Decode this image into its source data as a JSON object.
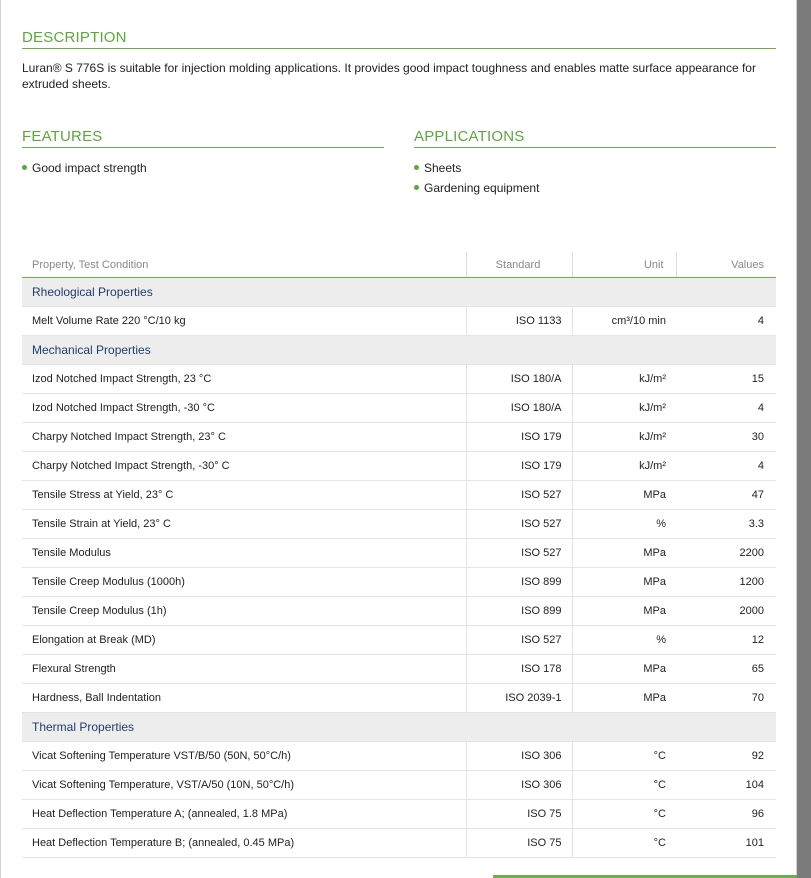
{
  "description": {
    "title": "DESCRIPTION",
    "text": "Luran® S 776S is suitable for injection molding applications. It provides good impact toughness and enables matte surface appearance for extruded sheets."
  },
  "features": {
    "title": "FEATURES",
    "items": [
      "Good impact strength"
    ]
  },
  "applications": {
    "title": "APPLICATIONS",
    "items": [
      "Sheets",
      "Gardening equipment"
    ]
  },
  "table": {
    "headers": [
      "Property, Test Condition",
      "Standard",
      "Unit",
      "Values"
    ],
    "groups": [
      {
        "name": "Rheological Properties",
        "rows": [
          [
            "Melt Volume Rate 220 °C/10 kg",
            "ISO 1133",
            "cm³/10 min",
            "4"
          ]
        ]
      },
      {
        "name": "Mechanical Properties",
        "rows": [
          [
            "Izod Notched Impact Strength, 23 °C",
            "ISO 180/A",
            "kJ/m²",
            "15"
          ],
          [
            "Izod Notched Impact Strength, -30 °C",
            "ISO 180/A",
            "kJ/m²",
            "4"
          ],
          [
            "Charpy Notched Impact Strength, 23° C",
            "ISO 179",
            "kJ/m²",
            "30"
          ],
          [
            "Charpy Notched Impact Strength, -30° C",
            "ISO 179",
            "kJ/m²",
            "4"
          ],
          [
            "Tensile Stress at Yield, 23° C",
            "ISO 527",
            "MPa",
            "47"
          ],
          [
            "Tensile Strain at Yield, 23° C",
            "ISO 527",
            "%",
            "3.3"
          ],
          [
            "Tensile Modulus",
            "ISO 527",
            "MPa",
            "2200"
          ],
          [
            "Tensile Creep Modulus (1000h)",
            "ISO 899",
            "MPa",
            "1200"
          ],
          [
            "Tensile Creep Modulus (1h)",
            "ISO 899",
            "MPa",
            "2000"
          ],
          [
            "Elongation at Break (MD)",
            "ISO 527",
            "%",
            "12"
          ],
          [
            "Flexural Strength",
            "ISO 178",
            "MPa",
            "65"
          ],
          [
            "Hardness, Ball Indentation",
            "ISO 2039-1",
            "MPa",
            "70"
          ]
        ]
      },
      {
        "name": "Thermal Properties",
        "rows": [
          [
            "Vicat Softening Temperature VST/B/50 (50N, 50°C/h)",
            "ISO 306",
            "°C",
            "92"
          ],
          [
            "Vicat Softening Temperature, VST/A/50 (10N, 50°C/h)",
            "ISO 306",
            "°C",
            "104"
          ],
          [
            "Heat Deflection Temperature A; (annealed, 1.8 MPa)",
            "ISO 75",
            "°C",
            "96"
          ],
          [
            "Heat Deflection Temperature B; (annealed, 0.45 MPa)",
            "ISO 75",
            "°C",
            "101"
          ]
        ]
      }
    ]
  },
  "colors": {
    "accent": "#5ba83c",
    "group_text": "#1f3d6b",
    "group_bg": "#ededed"
  }
}
